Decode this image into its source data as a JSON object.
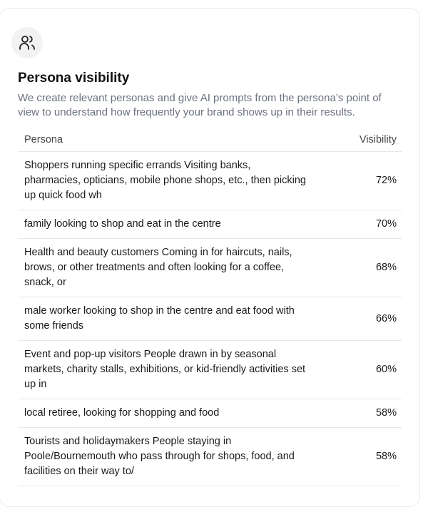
{
  "card": {
    "icon": "users-icon",
    "title": "Persona visibility",
    "description": "We create relevant personas and give AI prompts from the persona’s point of view to understand how frequently your brand shows up in their results."
  },
  "table": {
    "headers": {
      "persona": "Persona",
      "visibility": "Visibility"
    },
    "rows": [
      {
        "persona": "Shoppers running specific errands Visiting banks, pharmacies, opticians, mobile phone shops, etc., then picking up quick food wh",
        "visibility": "72%"
      },
      {
        "persona": "family looking to shop and eat in the centre",
        "visibility": "70%"
      },
      {
        "persona": "Health and beauty customers Coming in for haircuts, nails, brows, or other treatments and often looking for a coffee, snack, or",
        "visibility": "68%"
      },
      {
        "persona": "male worker looking to shop in the centre and eat food with some friends",
        "visibility": "66%"
      },
      {
        "persona": "Event and pop-up visitors People drawn in by seasonal markets, charity stalls, exhibitions, or kid-friendly activities set up in",
        "visibility": "60%"
      },
      {
        "persona": "local retiree, looking for shopping and food",
        "visibility": "58%"
      },
      {
        "persona": "Tourists and holidaymakers People staying in Poole/Bournemouth who pass through for shops, food, and facilities on their way to/",
        "visibility": "58%"
      }
    ]
  }
}
